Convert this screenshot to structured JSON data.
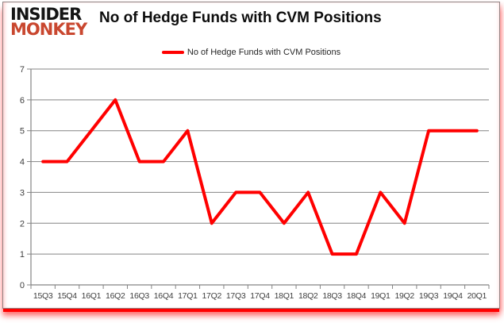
{
  "logo": {
    "line1": "INSIDER",
    "line2": "MONKEY",
    "color": "#c9472f"
  },
  "title": "No of Hedge Funds with CVM Positions",
  "legend": {
    "label": "No of Hedge Funds with CVM Positions",
    "color": "#ff0000"
  },
  "colors": {
    "line": "#ff0000",
    "grid": "#848484",
    "axis": "#848484",
    "tick": "#848484",
    "axis_label": "#3f3f3f",
    "background": "#ffffff"
  },
  "chart_data": {
    "type": "line",
    "title": "No of Hedge Funds with CVM Positions",
    "series": [
      {
        "name": "No of Hedge Funds with CVM Positions",
        "values": [
          4,
          4,
          5,
          6,
          4,
          4,
          5,
          2,
          3,
          3,
          2,
          3,
          1,
          1,
          3,
          2,
          5,
          5,
          5
        ],
        "color": "#ff0000"
      }
    ],
    "categories": [
      "15Q3",
      "15Q4",
      "16Q1",
      "16Q2",
      "16Q3",
      "16Q4",
      "17Q1",
      "17Q2",
      "17Q3",
      "17Q4",
      "18Q1",
      "18Q2",
      "18Q3",
      "18Q4",
      "19Q1",
      "19Q2",
      "19Q3",
      "19Q4",
      "20Q1"
    ],
    "xlabel": "",
    "ylabel": "",
    "ylim": [
      0,
      7
    ],
    "ytick_interval": 1,
    "grid": true,
    "legend_position": "top-center"
  }
}
